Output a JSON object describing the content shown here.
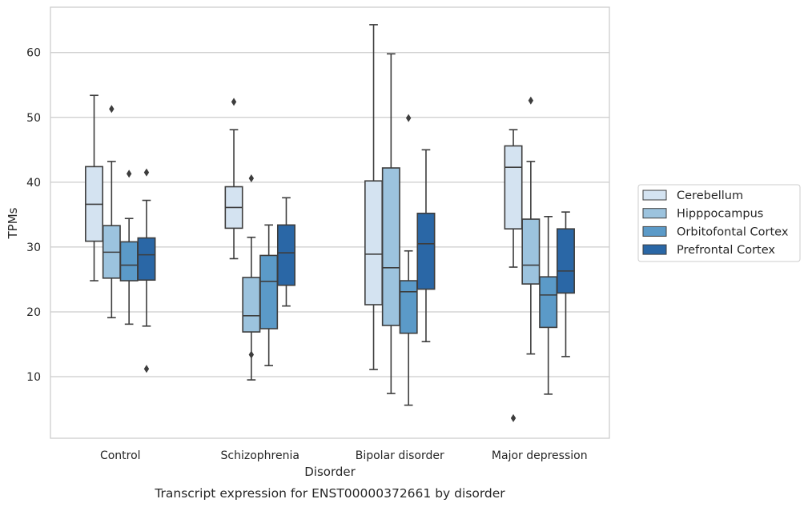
{
  "chart_data": {
    "type": "box",
    "xlabel": "Disorder",
    "ylabel": "TPMs",
    "caption": "Transcript expression for ENST00000372661 by disorder",
    "ylim": [
      0.5,
      67
    ],
    "yticks": [
      "10",
      "20",
      "30",
      "40",
      "50",
      "60"
    ],
    "grid": "horizontal",
    "legend_position": "right",
    "categories": [
      "Control",
      "Schizophrenia",
      "Bipolar disorder",
      "Major depression"
    ],
    "series": [
      {
        "name": "Cerebellum",
        "color": "#d4e3f1",
        "boxes": [
          {
            "whisker_low": 24.8,
            "q1": 30.9,
            "median": 36.6,
            "q3": 42.4,
            "whisker_high": 53.4,
            "outliers": []
          },
          {
            "whisker_low": 28.2,
            "q1": 32.9,
            "median": 36.1,
            "q3": 39.3,
            "whisker_high": 48.1,
            "outliers": [
              52.4
            ]
          },
          {
            "whisker_low": 11.1,
            "q1": 21.1,
            "median": 28.9,
            "q3": 40.2,
            "whisker_high": 64.3,
            "outliers": []
          },
          {
            "whisker_low": 26.9,
            "q1": 32.8,
            "median": 42.3,
            "q3": 45.6,
            "whisker_high": 48.1,
            "outliers": [
              3.6
            ]
          }
        ]
      },
      {
        "name": "Hipppocampus",
        "color": "#9cc3de",
        "boxes": [
          {
            "whisker_low": 19.1,
            "q1": 25.2,
            "median": 29.2,
            "q3": 33.3,
            "whisker_high": 43.2,
            "outliers": [
              51.3
            ]
          },
          {
            "whisker_low": 9.5,
            "q1": 16.9,
            "median": 19.4,
            "q3": 25.3,
            "whisker_high": 31.5,
            "outliers": [
              13.4,
              40.6
            ]
          },
          {
            "whisker_low": 7.4,
            "q1": 17.9,
            "median": 26.8,
            "q3": 42.2,
            "whisker_high": 59.8,
            "outliers": []
          },
          {
            "whisker_low": 13.5,
            "q1": 24.3,
            "median": 27.2,
            "q3": 34.3,
            "whisker_high": 43.2,
            "outliers": [
              52.6
            ]
          }
        ]
      },
      {
        "name": "Orbitofontal Cortex",
        "color": "#5b9ac8",
        "boxes": [
          {
            "whisker_low": 18.1,
            "q1": 24.8,
            "median": 27.2,
            "q3": 30.8,
            "whisker_high": 34.4,
            "outliers": [
              41.3
            ]
          },
          {
            "whisker_low": 11.7,
            "q1": 17.4,
            "median": 24.7,
            "q3": 28.7,
            "whisker_high": 33.4,
            "outliers": []
          },
          {
            "whisker_low": 5.6,
            "q1": 16.7,
            "median": 23.1,
            "q3": 24.8,
            "whisker_high": 29.4,
            "outliers": [
              49.9
            ]
          },
          {
            "whisker_low": 7.3,
            "q1": 17.6,
            "median": 22.6,
            "q3": 25.4,
            "whisker_high": 34.7,
            "outliers": []
          }
        ]
      },
      {
        "name": "Prefrontal Cortex",
        "color": "#2a67a6",
        "boxes": [
          {
            "whisker_low": 17.8,
            "q1": 24.9,
            "median": 28.8,
            "q3": 31.4,
            "whisker_high": 37.2,
            "outliers": [
              11.2,
              41.5
            ]
          },
          {
            "whisker_low": 20.9,
            "q1": 24.1,
            "median": 29.1,
            "q3": 33.4,
            "whisker_high": 37.6,
            "outliers": []
          },
          {
            "whisker_low": 15.4,
            "q1": 23.5,
            "median": 30.5,
            "q3": 35.2,
            "whisker_high": 45.0,
            "outliers": []
          },
          {
            "whisker_low": 13.1,
            "q1": 22.9,
            "median": 26.3,
            "q3": 32.8,
            "whisker_high": 35.4,
            "outliers": []
          }
        ]
      }
    ]
  }
}
